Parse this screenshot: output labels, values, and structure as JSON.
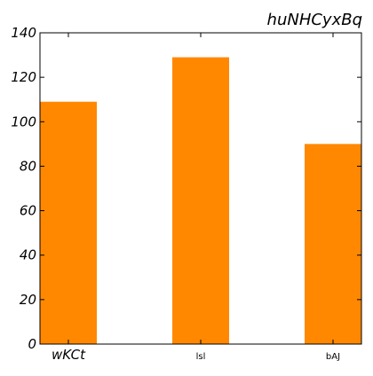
{
  "chart_data": {
    "type": "bar",
    "title": "huNHCyxBq",
    "categories": [
      "wKCt",
      "lsl",
      "bAJ"
    ],
    "values": [
      109,
      129,
      90
    ],
    "ylim": [
      0,
      140
    ],
    "yticks": [
      0,
      20,
      40,
      60,
      80,
      100,
      120,
      140
    ],
    "grid": false,
    "legend": "none",
    "colors": {
      "bar": "#ff8800",
      "axis": "#000000",
      "background": "#ffffff"
    }
  }
}
